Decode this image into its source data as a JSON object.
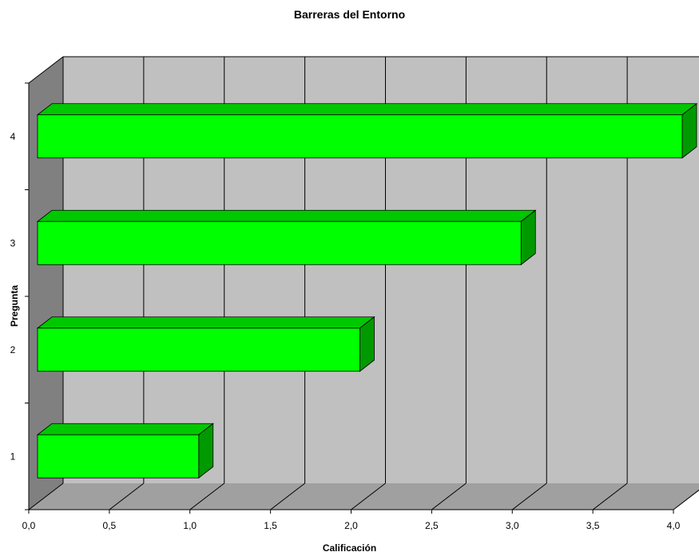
{
  "chart_data": {
    "type": "bar",
    "orientation": "horizontal",
    "style": "3d",
    "title": "Barreras del Entorno",
    "xlabel": "Calificación",
    "ylabel": "Pregunta",
    "categories": [
      "1",
      "2",
      "3",
      "4"
    ],
    "values": [
      1.0,
      2.0,
      3.0,
      4.0
    ],
    "xlim": [
      0,
      4
    ],
    "xticks": [
      "0,0",
      "0,5",
      "1,0",
      "1,5",
      "2,0",
      "2,5",
      "3,0",
      "3,5",
      "4,0"
    ],
    "grid": true,
    "legend": "none",
    "colors": {
      "bar_front": "#00ff00",
      "bar_top": "#00c800",
      "bar_side": "#009a00",
      "back_wall": "#c0c0c0",
      "side_wall": "#808080",
      "floor": "#a0a0a0"
    }
  }
}
